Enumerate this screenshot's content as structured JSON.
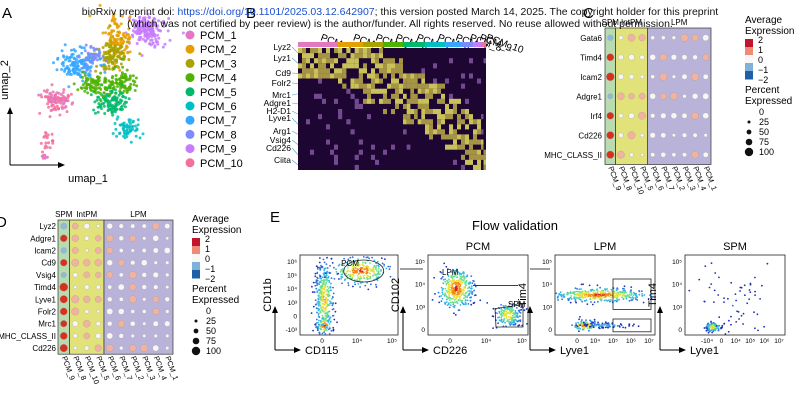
{
  "banner": {
    "line1_pre": "bioRxiv preprint doi: ",
    "doi": "https://doi.org/10.1101/2025.03.12.642907",
    "line1_post": "; this version posted March 14, 2025. The copyright holder for this preprint",
    "line2": "(which was not certified by peer review) is the author/funder. All rights reserved. No reuse allowed without permission."
  },
  "panels": {
    "A": "A",
    "B": "B",
    "C": "C",
    "D": "D",
    "E": "E"
  },
  "umap": {
    "xlabel": "umap_1",
    "ylabel": "umap_2",
    "clusters": [
      {
        "label": "PCM_1",
        "color": "#e377c2"
      },
      {
        "label": "PCM_2",
        "color": "#e69f00"
      },
      {
        "label": "PCM_3",
        "color": "#a9a200"
      },
      {
        "label": "PCM_4",
        "color": "#50b200"
      },
      {
        "label": "PCM_5",
        "color": "#00b86b"
      },
      {
        "label": "PCM_6",
        "color": "#00bfc4"
      },
      {
        "label": "PCM_7",
        "color": "#35a7ff"
      },
      {
        "label": "PCM_8",
        "color": "#7b8cff"
      },
      {
        "label": "PCM_9",
        "color": "#c77cff"
      },
      {
        "label": "PCM_10",
        "color": "#f2709c"
      }
    ]
  },
  "heatmap": {
    "genes": [
      "Lyz2",
      "Lyz1",
      "Cd9",
      "Folr2",
      "Mrc1",
      "Adgre1",
      "H2-D1",
      "Lyve1",
      "Arg1",
      "Vsig4",
      "Cd226",
      "Ciita"
    ],
    "top_labels": [
      "PCM_1",
      "PCM_2",
      "PCM_3",
      "PCM_4",
      "PCM_5",
      "PCM_6",
      "PCM_7",
      "PCM_8",
      "PCM_9",
      "PCM_10"
    ]
  },
  "dotplot_c": {
    "genes": [
      "Gata6",
      "Timd4",
      "Icam2",
      "Adgre1",
      "Irf4",
      "Cd226",
      "MHC_CLASS_II"
    ],
    "clusters": [
      "PCM_9",
      "PCM_8",
      "PCM_10",
      "PCM_5",
      "PCM_6",
      "PCM_7",
      "PCM_2",
      "PCM_3",
      "PCM_4",
      "PCM_1"
    ],
    "group_labels": [
      "SPM",
      "IntPM",
      "LPM"
    ],
    "colorbar_title": "Average Expression",
    "colorbar_ticks": [
      "2",
      "1",
      "0",
      "−1",
      "−2"
    ],
    "size_title": "Percent Expressed",
    "size_ticks": [
      "0",
      "25",
      "50",
      "75",
      "100"
    ]
  },
  "dotplot_d": {
    "genes": [
      "Lyz2",
      "Adgre1",
      "Icam2",
      "Cd9",
      "Vsig4",
      "Timd4",
      "Lyve1",
      "Folr2",
      "Mrc1",
      "MHC_CLASS_II",
      "Cd226"
    ],
    "clusters": [
      "PCM_9",
      "PCM_8",
      "PCM_10",
      "PCM_5",
      "PCM_6",
      "PCM_7",
      "PCM_2",
      "PCM_3",
      "PCM_4",
      "PCM_1"
    ],
    "group_labels": [
      "SPM",
      "IntPM",
      "LPM"
    ],
    "colorbar_title": "Average Expression",
    "colorbar_ticks": [
      "2",
      "1",
      "0",
      "−1",
      "−2"
    ],
    "size_title": "Percent Expressed",
    "size_ticks": [
      "0",
      "25",
      "50",
      "75",
      "100"
    ]
  },
  "flow": {
    "title": "Flow validation",
    "plots": [
      {
        "title": "",
        "xlabel": "CD115",
        "ylabel": "CD11b",
        "gates": [
          "PCM"
        ],
        "yticks": [
          "10⁶",
          "10⁵",
          "10⁴",
          "10³",
          "0",
          "-10³"
        ],
        "xticks": [
          "0",
          "10⁴",
          "10⁵"
        ]
      },
      {
        "title": "PCM",
        "xlabel": "CD226",
        "ylabel": "CD102",
        "gates": [
          "LPM",
          "SPM"
        ],
        "yticks": [
          "10⁵",
          "10⁴",
          "10³",
          "0"
        ],
        "xticks": [
          "0",
          "10⁴",
          "10⁵"
        ]
      },
      {
        "title": "LPM",
        "xlabel": "Lyve1",
        "ylabel": "Tim4",
        "gates": [],
        "yticks": [
          "10⁵",
          "10⁴",
          "10³",
          "0"
        ],
        "xticks": [
          "0",
          "10⁴",
          "10⁵",
          "10⁶",
          "10⁷"
        ]
      },
      {
        "title": "SPM",
        "xlabel": "Lyve1",
        "ylabel": "Tim4",
        "gates": [],
        "yticks": [
          "10⁵",
          "10⁴",
          "10³",
          "0"
        ],
        "xticks": [
          "-10⁴",
          "0",
          "10⁴",
          "10⁵",
          "10⁶",
          "10⁷"
        ]
      }
    ]
  }
}
